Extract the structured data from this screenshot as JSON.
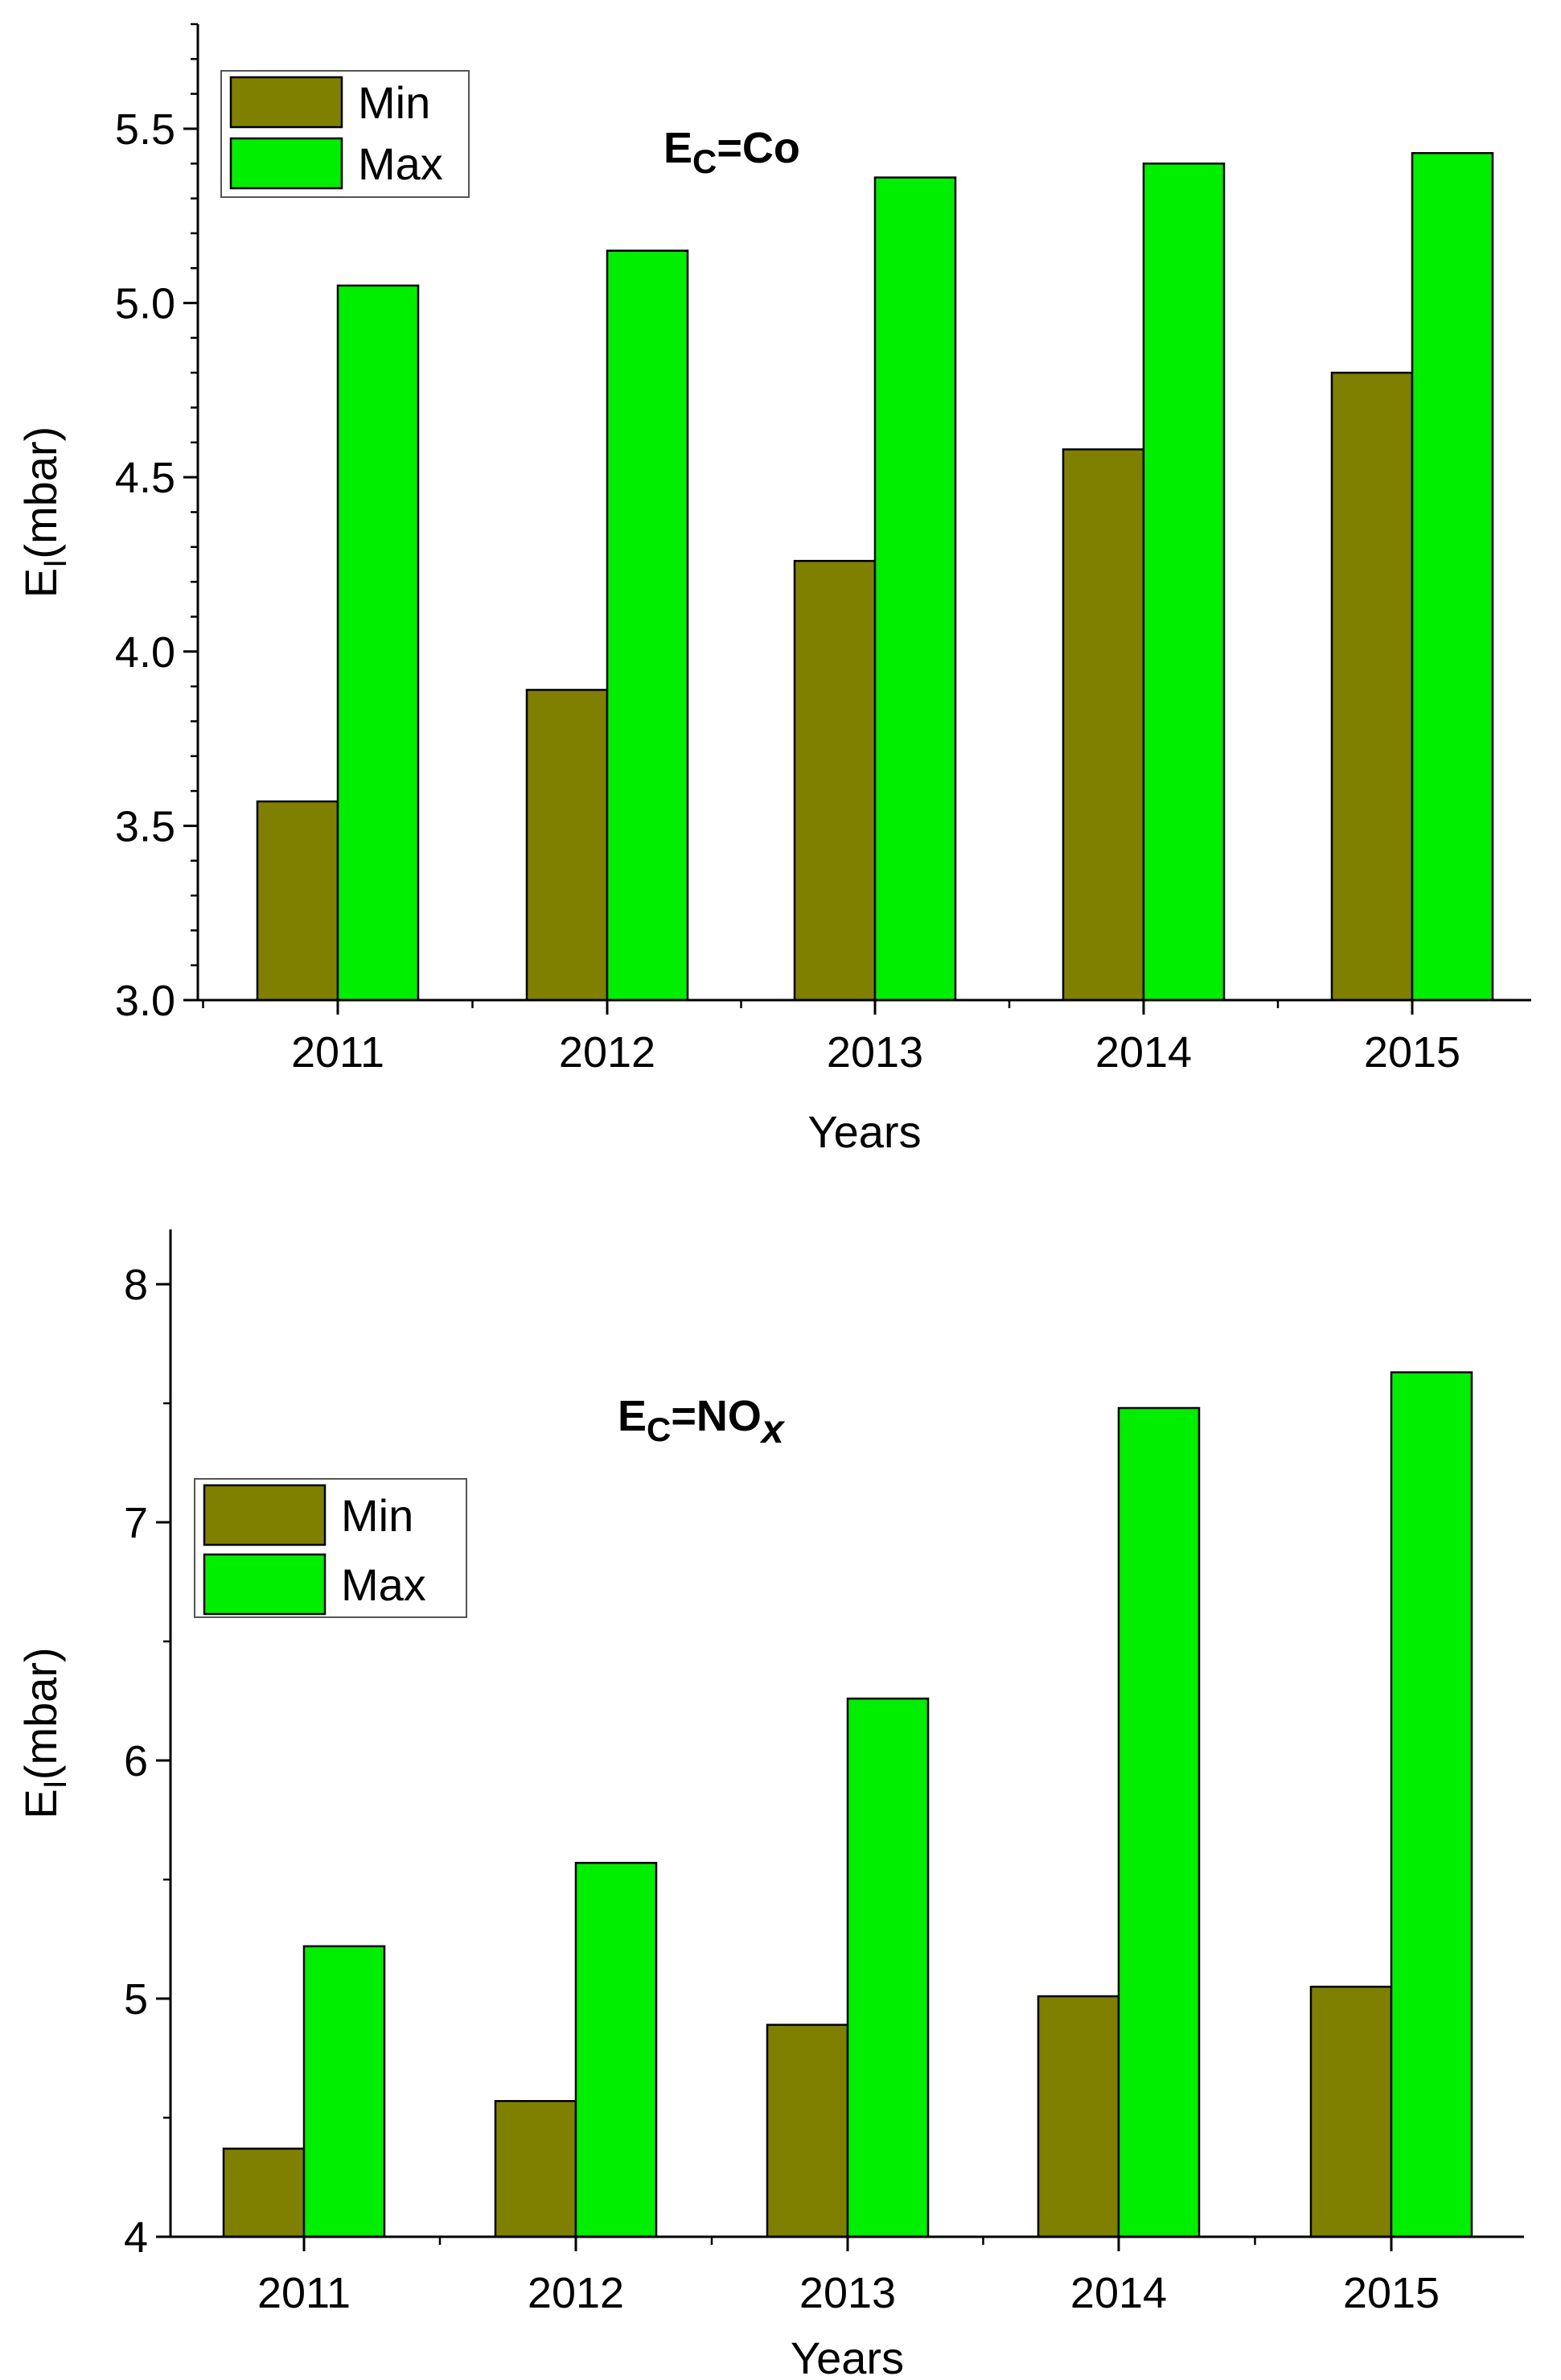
{
  "chart_data": [
    {
      "type": "bar",
      "annotation": {
        "main": "E",
        "sub": "C",
        "rest": "=Co",
        "rest_sub": ""
      },
      "categories": [
        "2011",
        "2012",
        "2013",
        "2014",
        "2015"
      ],
      "series": [
        {
          "name": "Min",
          "color": "#808000",
          "values": [
            3.57,
            3.89,
            4.26,
            4.58,
            4.8
          ]
        },
        {
          "name": "Max",
          "color": "#00ee00",
          "values": [
            5.05,
            5.15,
            5.36,
            5.4,
            5.43
          ]
        }
      ],
      "xlabel": "Years",
      "ylabel": {
        "main": "E",
        "sub": "I",
        "rest": "(mbar)"
      },
      "ylim": [
        3.0,
        5.8
      ],
      "yticks": [
        "3.0",
        "3.5",
        "4.0",
        "4.5",
        "5.0",
        "5.5"
      ],
      "y_minor_step": 0.1,
      "legend_position": "top-left",
      "grid": false
    },
    {
      "type": "bar",
      "annotation": {
        "main": "E",
        "sub": "C",
        "rest": "=NO",
        "rest_sub": "x"
      },
      "categories": [
        "2011",
        "2012",
        "2013",
        "2014",
        "2015"
      ],
      "series": [
        {
          "name": "Min",
          "color": "#808000",
          "values": [
            4.37,
            4.57,
            4.89,
            5.01,
            5.05
          ]
        },
        {
          "name": "Max",
          "color": "#00ee00",
          "values": [
            5.22,
            5.57,
            6.26,
            7.48,
            7.63
          ]
        }
      ],
      "xlabel": "Years",
      "ylabel": {
        "main": "E",
        "sub": "I",
        "rest": "(mbar)"
      },
      "ylim": [
        4,
        8.23
      ],
      "yticks": [
        "4",
        "5",
        "6",
        "7",
        "8"
      ],
      "y_minor_step": 0.5,
      "legend_position": "upper-left",
      "grid": false
    }
  ]
}
